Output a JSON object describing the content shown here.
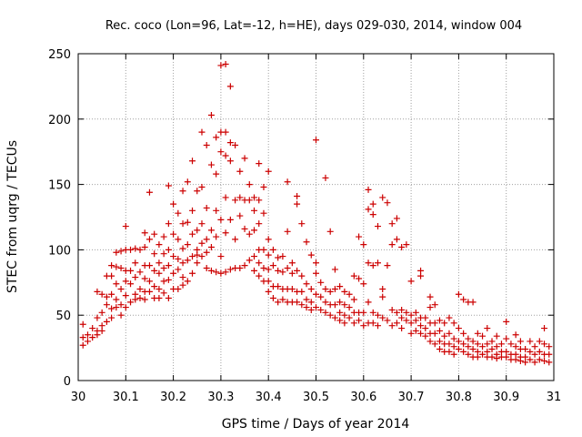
{
  "chart_data": {
    "type": "scatter",
    "title": "Rec. coco (Lon=96, Lat=-12, h=HE), days 029-030, 2014, window 004",
    "xlabel": "GPS time / Days of year 2014",
    "ylabel": "STEC from uqrg / TECUs",
    "xlim": [
      30,
      31
    ],
    "ylim": [
      0,
      250
    ],
    "x_ticks": [
      "30",
      "30.1",
      "30.2",
      "30.3",
      "30.4",
      "30.5",
      "30.6",
      "30.7",
      "30.8",
      "30.9",
      "31"
    ],
    "y_ticks": [
      "0",
      "50",
      "100",
      "150",
      "200",
      "250"
    ],
    "grid": true,
    "marker": "plus",
    "color": "#cc0000",
    "points": [
      [
        30.01,
        43
      ],
      [
        30.01,
        33
      ],
      [
        30.01,
        27
      ],
      [
        30.02,
        35
      ],
      [
        30.02,
        30
      ],
      [
        30.03,
        40
      ],
      [
        30.03,
        33
      ],
      [
        30.04,
        68
      ],
      [
        30.04,
        48
      ],
      [
        30.04,
        38
      ],
      [
        30.04,
        35
      ],
      [
        30.05,
        66
      ],
      [
        30.05,
        52
      ],
      [
        30.05,
        42
      ],
      [
        30.05,
        38
      ],
      [
        30.06,
        80
      ],
      [
        30.06,
        64
      ],
      [
        30.06,
        58
      ],
      [
        30.06,
        45
      ],
      [
        30.07,
        88
      ],
      [
        30.07,
        80
      ],
      [
        30.07,
        66
      ],
      [
        30.07,
        55
      ],
      [
        30.07,
        48
      ],
      [
        30.08,
        98
      ],
      [
        30.08,
        87
      ],
      [
        30.08,
        74
      ],
      [
        30.08,
        62
      ],
      [
        30.08,
        56
      ],
      [
        30.09,
        99
      ],
      [
        30.09,
        86
      ],
      [
        30.09,
        70
      ],
      [
        30.09,
        58
      ],
      [
        30.09,
        50
      ],
      [
        30.1,
        118
      ],
      [
        30.1,
        100
      ],
      [
        30.1,
        84
      ],
      [
        30.1,
        76
      ],
      [
        30.1,
        65
      ],
      [
        30.1,
        56
      ],
      [
        30.11,
        100
      ],
      [
        30.11,
        84
      ],
      [
        30.11,
        74
      ],
      [
        30.11,
        60
      ],
      [
        30.12,
        101
      ],
      [
        30.12,
        90
      ],
      [
        30.12,
        79
      ],
      [
        30.12,
        66
      ],
      [
        30.12,
        62
      ],
      [
        30.13,
        100
      ],
      [
        30.13,
        83
      ],
      [
        30.13,
        70
      ],
      [
        30.13,
        63
      ],
      [
        30.14,
        113
      ],
      [
        30.14,
        102
      ],
      [
        30.14,
        88
      ],
      [
        30.14,
        78
      ],
      [
        30.14,
        68
      ],
      [
        30.14,
        62
      ],
      [
        30.15,
        144
      ],
      [
        30.15,
        108
      ],
      [
        30.15,
        88
      ],
      [
        30.15,
        76
      ],
      [
        30.15,
        68
      ],
      [
        30.16,
        112
      ],
      [
        30.16,
        97
      ],
      [
        30.16,
        84
      ],
      [
        30.16,
        72
      ],
      [
        30.16,
        63
      ],
      [
        30.17,
        104
      ],
      [
        30.17,
        90
      ],
      [
        30.17,
        82
      ],
      [
        30.17,
        70
      ],
      [
        30.17,
        63
      ],
      [
        30.18,
        110
      ],
      [
        30.18,
        97
      ],
      [
        30.18,
        86
      ],
      [
        30.18,
        76
      ],
      [
        30.18,
        67
      ],
      [
        30.19,
        149
      ],
      [
        30.19,
        120
      ],
      [
        30.19,
        100
      ],
      [
        30.19,
        88
      ],
      [
        30.19,
        77
      ],
      [
        30.19,
        63
      ],
      [
        30.2,
        135
      ],
      [
        30.2,
        112
      ],
      [
        30.2,
        95
      ],
      [
        30.2,
        82
      ],
      [
        30.2,
        70
      ],
      [
        30.21,
        128
      ],
      [
        30.21,
        108
      ],
      [
        30.21,
        93
      ],
      [
        30.21,
        85
      ],
      [
        30.21,
        70
      ],
      [
        30.22,
        145
      ],
      [
        30.22,
        120
      ],
      [
        30.22,
        101
      ],
      [
        30.22,
        90
      ],
      [
        30.22,
        79
      ],
      [
        30.22,
        73
      ],
      [
        30.23,
        152
      ],
      [
        30.23,
        121
      ],
      [
        30.23,
        104
      ],
      [
        30.23,
        92
      ],
      [
        30.23,
        76
      ],
      [
        30.24,
        168
      ],
      [
        30.24,
        130
      ],
      [
        30.24,
        112
      ],
      [
        30.24,
        95
      ],
      [
        30.24,
        82
      ],
      [
        30.25,
        145
      ],
      [
        30.25,
        115
      ],
      [
        30.25,
        100
      ],
      [
        30.25,
        96
      ],
      [
        30.25,
        90
      ],
      [
        30.26,
        190
      ],
      [
        30.26,
        148
      ],
      [
        30.26,
        120
      ],
      [
        30.26,
        105
      ],
      [
        30.26,
        95
      ],
      [
        30.27,
        180
      ],
      [
        30.27,
        132
      ],
      [
        30.27,
        108
      ],
      [
        30.27,
        98
      ],
      [
        30.27,
        86
      ],
      [
        30.28,
        203
      ],
      [
        30.28,
        165
      ],
      [
        30.28,
        115
      ],
      [
        30.28,
        102
      ],
      [
        30.28,
        84
      ],
      [
        30.29,
        186
      ],
      [
        30.29,
        158
      ],
      [
        30.29,
        130
      ],
      [
        30.29,
        110
      ],
      [
        30.29,
        83
      ],
      [
        30.3,
        241
      ],
      [
        30.3,
        190
      ],
      [
        30.3,
        175
      ],
      [
        30.3,
        123
      ],
      [
        30.3,
        95
      ],
      [
        30.3,
        82
      ],
      [
        30.31,
        242
      ],
      [
        30.31,
        190
      ],
      [
        30.31,
        172
      ],
      [
        30.31,
        140
      ],
      [
        30.31,
        113
      ],
      [
        30.31,
        83
      ],
      [
        30.32,
        225
      ],
      [
        30.32,
        182
      ],
      [
        30.32,
        168
      ],
      [
        30.32,
        123
      ],
      [
        30.32,
        85
      ],
      [
        30.33,
        180
      ],
      [
        30.33,
        138
      ],
      [
        30.33,
        108
      ],
      [
        30.33,
        86
      ],
      [
        30.34,
        160
      ],
      [
        30.34,
        140
      ],
      [
        30.34,
        126
      ],
      [
        30.34,
        86
      ],
      [
        30.35,
        170
      ],
      [
        30.35,
        138
      ],
      [
        30.35,
        116
      ],
      [
        30.35,
        88
      ],
      [
        30.36,
        150
      ],
      [
        30.36,
        138
      ],
      [
        30.36,
        112
      ],
      [
        30.36,
        92
      ],
      [
        30.37,
        140
      ],
      [
        30.37,
        130
      ],
      [
        30.37,
        115
      ],
      [
        30.37,
        95
      ],
      [
        30.37,
        84
      ],
      [
        30.38,
        166
      ],
      [
        30.38,
        138
      ],
      [
        30.38,
        120
      ],
      [
        30.38,
        100
      ],
      [
        30.38,
        90
      ],
      [
        30.38,
        80
      ],
      [
        30.39,
        148
      ],
      [
        30.39,
        128
      ],
      [
        30.39,
        100
      ],
      [
        30.39,
        86
      ],
      [
        30.39,
        76
      ],
      [
        30.4,
        160
      ],
      [
        30.4,
        108
      ],
      [
        30.4,
        96
      ],
      [
        30.4,
        85
      ],
      [
        30.4,
        76
      ],
      [
        30.4,
        68
      ],
      [
        30.41,
        100
      ],
      [
        30.41,
        88
      ],
      [
        30.41,
        72
      ],
      [
        30.41,
        63
      ],
      [
        30.42,
        94
      ],
      [
        30.42,
        84
      ],
      [
        30.42,
        72
      ],
      [
        30.42,
        60
      ],
      [
        30.43,
        95
      ],
      [
        30.43,
        83
      ],
      [
        30.43,
        70
      ],
      [
        30.43,
        62
      ],
      [
        30.44,
        152
      ],
      [
        30.44,
        114
      ],
      [
        30.44,
        86
      ],
      [
        30.44,
        70
      ],
      [
        30.44,
        60
      ],
      [
        30.45,
        90
      ],
      [
        30.45,
        82
      ],
      [
        30.45,
        70
      ],
      [
        30.45,
        60
      ],
      [
        30.46,
        141
      ],
      [
        30.46,
        135
      ],
      [
        30.46,
        84
      ],
      [
        30.46,
        68
      ],
      [
        30.46,
        60
      ],
      [
        30.47,
        120
      ],
      [
        30.47,
        80
      ],
      [
        30.47,
        68
      ],
      [
        30.47,
        58
      ],
      [
        30.48,
        106
      ],
      [
        30.48,
        74
      ],
      [
        30.48,
        62
      ],
      [
        30.48,
        56
      ],
      [
        30.49,
        96
      ],
      [
        30.49,
        70
      ],
      [
        30.49,
        60
      ],
      [
        30.49,
        54
      ],
      [
        30.5,
        184
      ],
      [
        30.5,
        90
      ],
      [
        30.5,
        82
      ],
      [
        30.5,
        66
      ],
      [
        30.5,
        56
      ],
      [
        30.51,
        75
      ],
      [
        30.51,
        64
      ],
      [
        30.51,
        54
      ],
      [
        30.52,
        155
      ],
      [
        30.52,
        70
      ],
      [
        30.52,
        60
      ],
      [
        30.52,
        52
      ],
      [
        30.53,
        114
      ],
      [
        30.53,
        68
      ],
      [
        30.53,
        58
      ],
      [
        30.53,
        50
      ],
      [
        30.54,
        85
      ],
      [
        30.54,
        70
      ],
      [
        30.54,
        58
      ],
      [
        30.54,
        48
      ],
      [
        30.55,
        72
      ],
      [
        30.55,
        60
      ],
      [
        30.55,
        52
      ],
      [
        30.55,
        46
      ],
      [
        30.56,
        68
      ],
      [
        30.56,
        58
      ],
      [
        30.56,
        50
      ],
      [
        30.56,
        44
      ],
      [
        30.57,
        66
      ],
      [
        30.57,
        56
      ],
      [
        30.57,
        48
      ],
      [
        30.58,
        80
      ],
      [
        30.58,
        62
      ],
      [
        30.58,
        52
      ],
      [
        30.58,
        44
      ],
      [
        30.59,
        110
      ],
      [
        30.59,
        78
      ],
      [
        30.59,
        52
      ],
      [
        30.59,
        46
      ],
      [
        30.6,
        104
      ],
      [
        30.6,
        74
      ],
      [
        30.6,
        52
      ],
      [
        30.6,
        42
      ],
      [
        30.61,
        146
      ],
      [
        30.61,
        131
      ],
      [
        30.61,
        90
      ],
      [
        30.61,
        60
      ],
      [
        30.61,
        44
      ],
      [
        30.62,
        135
      ],
      [
        30.62,
        127
      ],
      [
        30.62,
        88
      ],
      [
        30.62,
        52
      ],
      [
        30.62,
        44
      ],
      [
        30.63,
        118
      ],
      [
        30.63,
        90
      ],
      [
        30.63,
        50
      ],
      [
        30.63,
        42
      ],
      [
        30.64,
        140
      ],
      [
        30.64,
        70
      ],
      [
        30.64,
        64
      ],
      [
        30.64,
        48
      ],
      [
        30.65,
        136
      ],
      [
        30.65,
        88
      ],
      [
        30.65,
        46
      ],
      [
        30.66,
        120
      ],
      [
        30.66,
        104
      ],
      [
        30.66,
        54
      ],
      [
        30.66,
        42
      ],
      [
        30.67,
        124
      ],
      [
        30.67,
        108
      ],
      [
        30.67,
        52
      ],
      [
        30.67,
        44
      ],
      [
        30.68,
        102
      ],
      [
        30.68,
        54
      ],
      [
        30.68,
        48
      ],
      [
        30.68,
        40
      ],
      [
        30.69,
        104
      ],
      [
        30.69,
        52
      ],
      [
        30.69,
        46
      ],
      [
        30.7,
        76
      ],
      [
        30.7,
        50
      ],
      [
        30.7,
        44
      ],
      [
        30.7,
        36
      ],
      [
        30.71,
        52
      ],
      [
        30.71,
        46
      ],
      [
        30.71,
        38
      ],
      [
        30.72,
        84
      ],
      [
        30.72,
        80
      ],
      [
        30.72,
        48
      ],
      [
        30.72,
        42
      ],
      [
        30.72,
        36
      ],
      [
        30.73,
        48
      ],
      [
        30.73,
        40
      ],
      [
        30.73,
        34
      ],
      [
        30.74,
        64
      ],
      [
        30.74,
        56
      ],
      [
        30.74,
        44
      ],
      [
        30.74,
        36
      ],
      [
        30.74,
        30
      ],
      [
        30.75,
        58
      ],
      [
        30.75,
        44
      ],
      [
        30.75,
        36
      ],
      [
        30.75,
        28
      ],
      [
        30.76,
        46
      ],
      [
        30.76,
        38
      ],
      [
        30.76,
        30
      ],
      [
        30.76,
        24
      ],
      [
        30.77,
        44
      ],
      [
        30.77,
        34
      ],
      [
        30.77,
        28
      ],
      [
        30.77,
        22
      ],
      [
        30.78,
        48
      ],
      [
        30.78,
        36
      ],
      [
        30.78,
        28
      ],
      [
        30.78,
        22
      ],
      [
        30.79,
        44
      ],
      [
        30.79,
        32
      ],
      [
        30.79,
        26
      ],
      [
        30.79,
        20
      ],
      [
        30.8,
        66
      ],
      [
        30.8,
        40
      ],
      [
        30.8,
        30
      ],
      [
        30.8,
        24
      ],
      [
        30.81,
        62
      ],
      [
        30.81,
        36
      ],
      [
        30.81,
        28
      ],
      [
        30.81,
        22
      ],
      [
        30.82,
        60
      ],
      [
        30.82,
        32
      ],
      [
        30.82,
        26
      ],
      [
        30.82,
        20
      ],
      [
        30.83,
        60
      ],
      [
        30.83,
        30
      ],
      [
        30.83,
        24
      ],
      [
        30.83,
        18
      ],
      [
        30.84,
        36
      ],
      [
        30.84,
        28
      ],
      [
        30.84,
        22
      ],
      [
        30.84,
        18
      ],
      [
        30.85,
        34
      ],
      [
        30.85,
        26
      ],
      [
        30.85,
        20
      ],
      [
        30.86,
        40
      ],
      [
        30.86,
        28
      ],
      [
        30.86,
        22
      ],
      [
        30.86,
        18
      ],
      [
        30.87,
        30
      ],
      [
        30.87,
        24
      ],
      [
        30.87,
        18
      ],
      [
        30.88,
        34
      ],
      [
        30.88,
        26
      ],
      [
        30.88,
        20
      ],
      [
        30.88,
        17
      ],
      [
        30.89,
        28
      ],
      [
        30.89,
        22
      ],
      [
        30.89,
        18
      ],
      [
        30.9,
        45
      ],
      [
        30.9,
        32
      ],
      [
        30.9,
        22
      ],
      [
        30.9,
        18
      ],
      [
        30.91,
        28
      ],
      [
        30.91,
        20
      ],
      [
        30.91,
        16
      ],
      [
        30.92,
        35
      ],
      [
        30.92,
        26
      ],
      [
        30.92,
        20
      ],
      [
        30.92,
        16
      ],
      [
        30.93,
        30
      ],
      [
        30.93,
        24
      ],
      [
        30.93,
        18
      ],
      [
        30.93,
        15
      ],
      [
        30.94,
        24
      ],
      [
        30.94,
        18
      ],
      [
        30.94,
        14
      ],
      [
        30.95,
        30
      ],
      [
        30.95,
        22
      ],
      [
        30.95,
        16
      ],
      [
        30.96,
        26
      ],
      [
        30.96,
        20
      ],
      [
        30.96,
        14
      ],
      [
        30.97,
        30
      ],
      [
        30.97,
        22
      ],
      [
        30.97,
        16
      ],
      [
        30.98,
        40
      ],
      [
        30.98,
        28
      ],
      [
        30.98,
        20
      ],
      [
        30.98,
        15
      ],
      [
        30.99,
        26
      ],
      [
        30.99,
        20
      ],
      [
        30.99,
        14
      ]
    ]
  }
}
